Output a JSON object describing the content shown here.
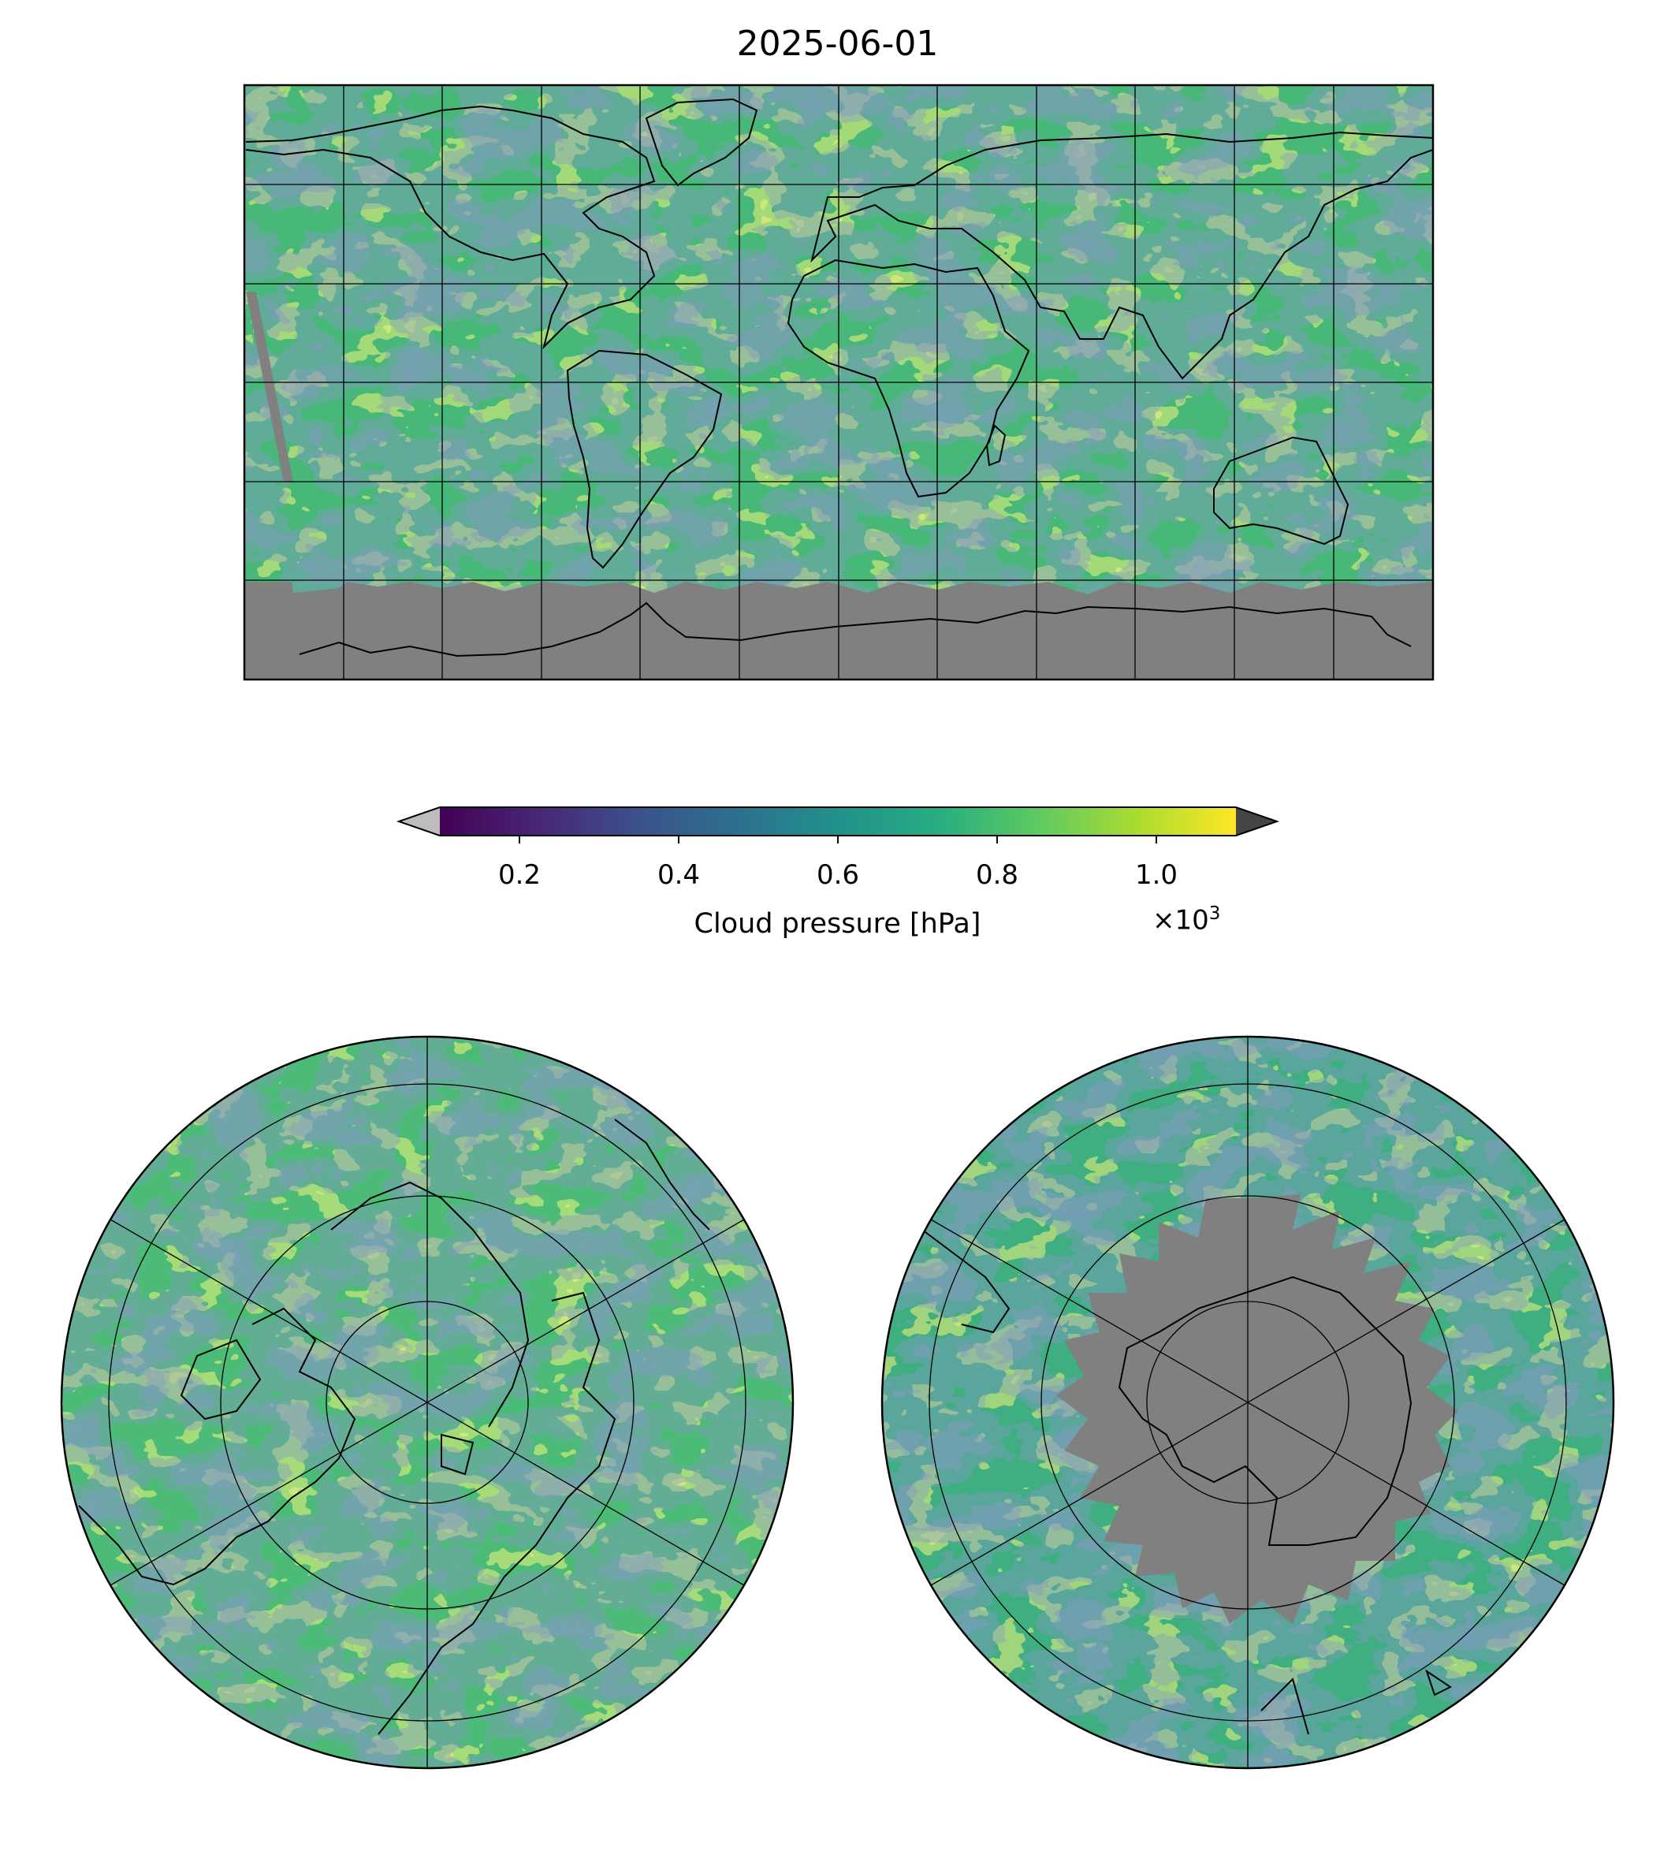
{
  "figure": {
    "title": "2025-06-01"
  },
  "colorbar": {
    "label": "Cloud pressure [hPa]",
    "ticks": [
      "0.2",
      "0.4",
      "0.6",
      "0.8",
      "1.0"
    ],
    "multiplier": "×10",
    "multiplier_exp": "3",
    "range": [
      0.1,
      1.1
    ],
    "colormap": "viridis",
    "under_color": "#bdbdbd",
    "over_color": "#444444"
  },
  "colors": {
    "missing_data": "#808080",
    "viridis": [
      "#440154",
      "#3b528b",
      "#21918c",
      "#5ec962",
      "#fde725"
    ]
  },
  "maps": [
    {
      "name": "global",
      "projection": "equirectangular"
    },
    {
      "name": "north-polar",
      "projection": "north-polar-stereographic"
    },
    {
      "name": "south-polar",
      "projection": "south-polar-stereographic"
    }
  ]
}
